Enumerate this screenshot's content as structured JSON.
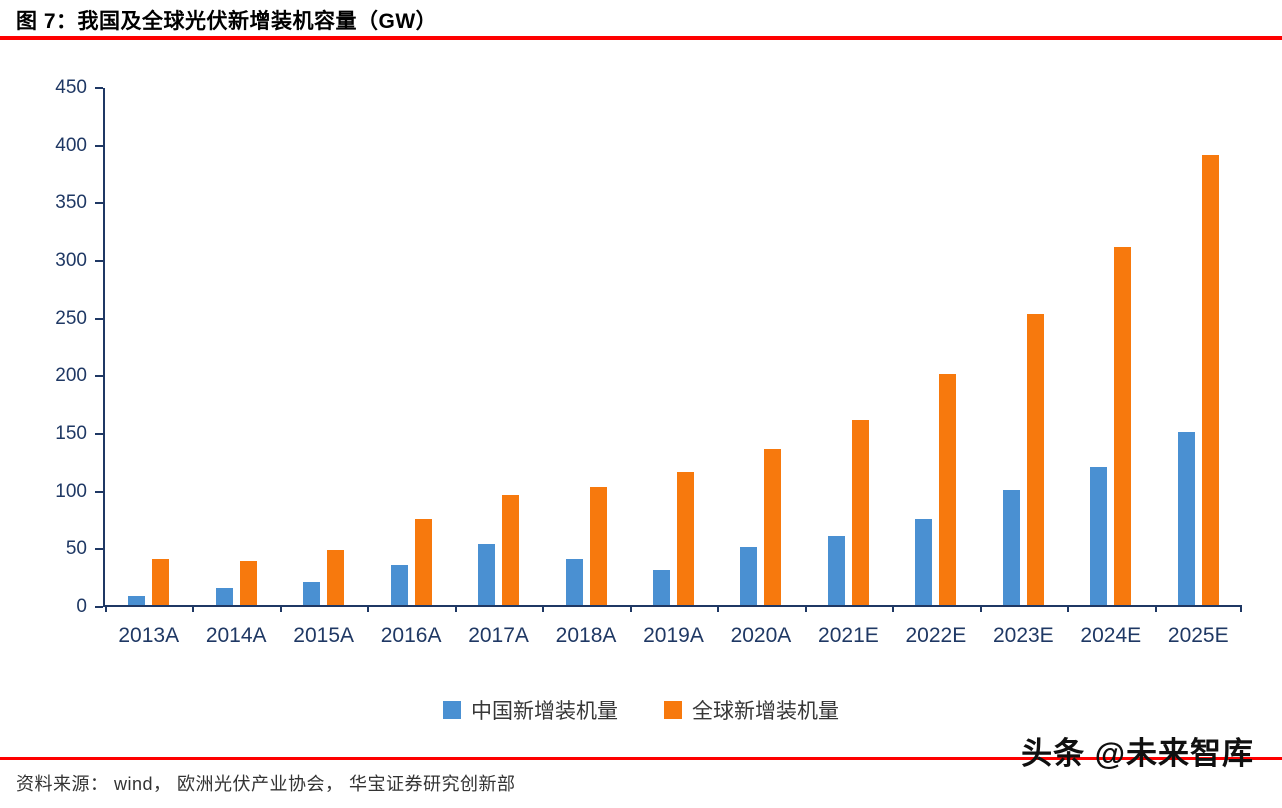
{
  "figure": {
    "title": "图 7：我国及全球光伏新增装机容量（GW）"
  },
  "chart_data": {
    "type": "bar",
    "title": "我国及全球光伏新增装机容量（GW）",
    "categories": [
      "2013A",
      "2014A",
      "2015A",
      "2016A",
      "2017A",
      "2018A",
      "2019A",
      "2020A",
      "2021E",
      "2022E",
      "2023E",
      "2024E",
      "2025E"
    ],
    "series": [
      {
        "name": "中国新增装机量",
        "color": "#4a90d2",
        "values": [
          8,
          15,
          20,
          35,
          53,
          40,
          30,
          50,
          60,
          75,
          100,
          120,
          150
        ]
      },
      {
        "name": "全球新增装机量",
        "color": "#f7790d",
        "values": [
          40,
          38,
          48,
          75,
          95,
          102,
          115,
          135,
          160,
          200,
          252,
          310,
          390
        ]
      }
    ],
    "xlabel": "",
    "ylabel": "",
    "ylim": [
      0,
      450
    ],
    "ytick_step": 50,
    "grid": false,
    "legend_position": "bottom",
    "axis_color": "#1f3864",
    "label_color": "#1f3864"
  },
  "footer": {
    "watermark": "头条 @未来智库",
    "source": "资料来源： wind， 欧洲光伏产业协会， 华宝证券研究创新部"
  },
  "style": {
    "rule_color": "#fe0000"
  }
}
